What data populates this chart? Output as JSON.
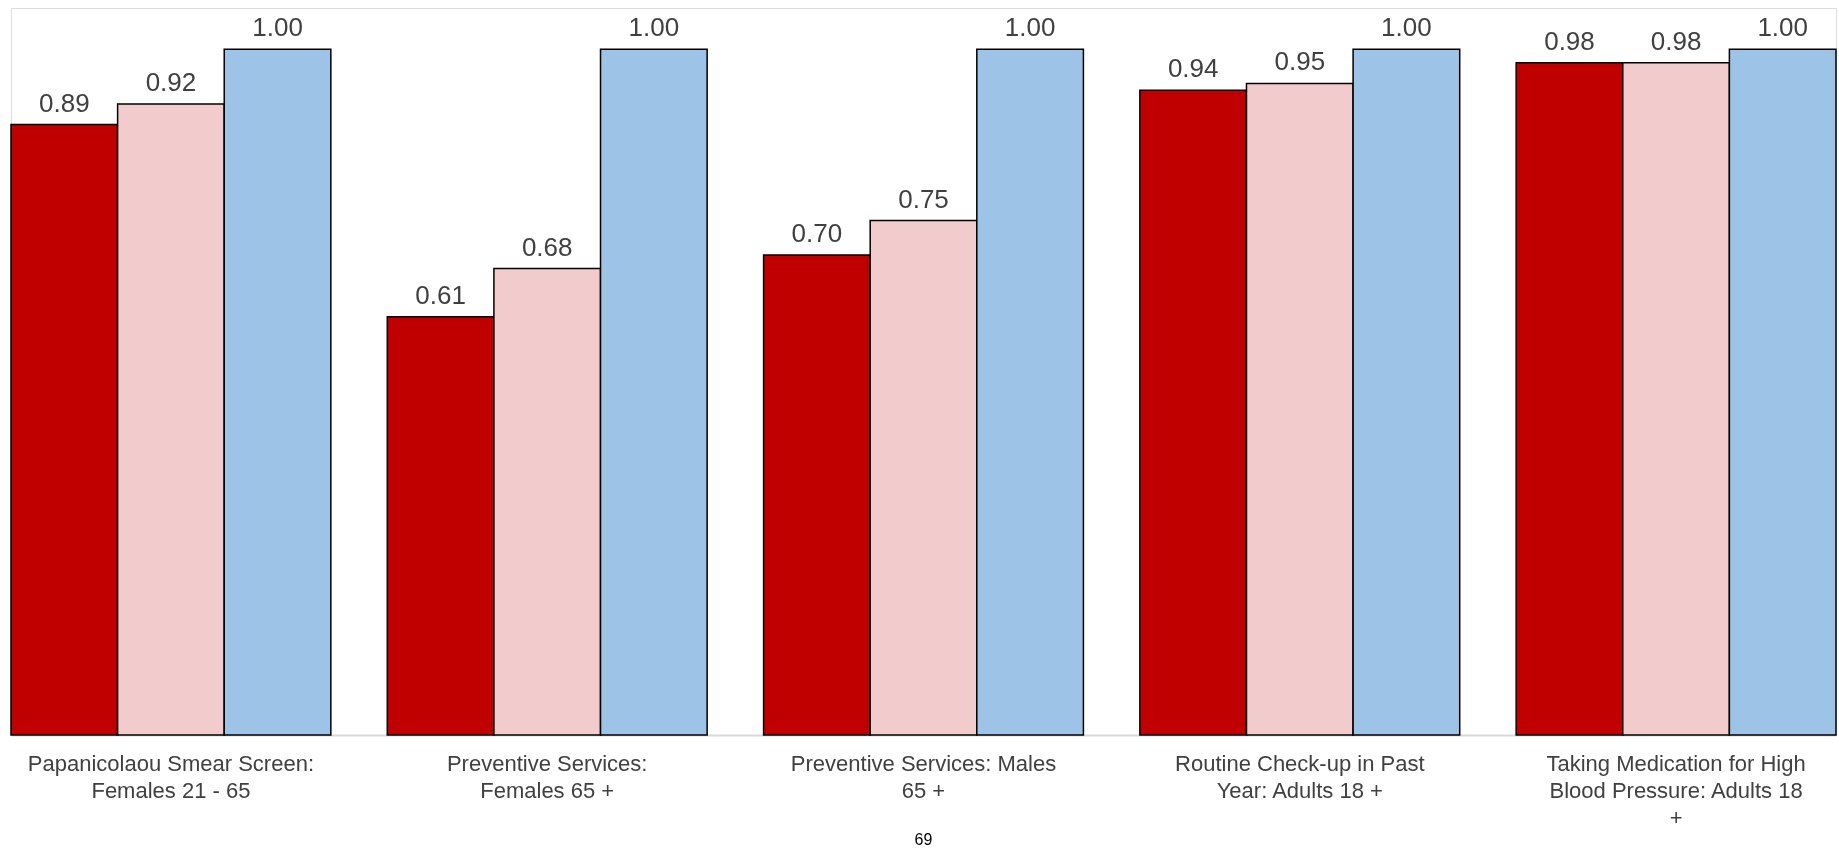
{
  "chart_data": {
    "type": "bar",
    "categories": [
      "Papanicolaou Smear Screen: Females 21 - 65",
      "Preventive Services: Females 65 +",
      "Preventive Services: Males 65 +",
      "Routine Check-up in Past Year: Adults 18 +",
      "Taking Medication for High Blood Pressure: Adults 18 +"
    ],
    "series": [
      {
        "color": "#c00000",
        "values": [
          0.89,
          0.61,
          0.7,
          0.94,
          0.98
        ],
        "value_labels": [
          "0.89",
          "0.61",
          "0.70",
          "0.94",
          "0.98"
        ]
      },
      {
        "color": "#f2cccc",
        "values": [
          0.92,
          0.68,
          0.75,
          0.95,
          0.98
        ],
        "value_labels": [
          "0.92",
          "0.68",
          "0.75",
          "0.95",
          "0.98"
        ]
      },
      {
        "color": "#9dc3e6",
        "values": [
          1.0,
          1.0,
          1.0,
          1.0,
          1.0
        ],
        "value_labels": [
          "1.00",
          "1.00",
          "1.00",
          "1.00",
          "1.00"
        ]
      }
    ],
    "legend": false,
    "grid": false,
    "annotations": [
      "69"
    ]
  }
}
